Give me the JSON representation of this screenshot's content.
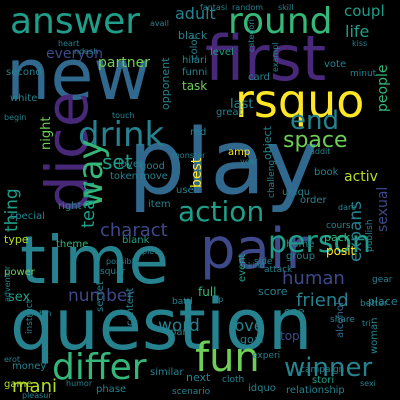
{
  "palette": [
    "#440154",
    "#482878",
    "#3e4989",
    "#31688e",
    "#26828e",
    "#1f9e89",
    "#35b779",
    "#6ece58",
    "#b5de2b",
    "#fde725"
  ],
  "words": [
    {
      "text": "play",
      "color": "#31688e"
    },
    {
      "text": "question",
      "color": "#26828e"
    },
    {
      "text": "new",
      "color": "#31688e"
    },
    {
      "text": "first",
      "color": "#482878"
    },
    {
      "text": "time",
      "color": "#26828e"
    },
    {
      "text": "pair",
      "color": "#3e4989"
    },
    {
      "text": "dice",
      "color": "#482878"
    },
    {
      "text": "rsquo",
      "color": "#fde725"
    },
    {
      "text": "answer",
      "color": "#1f9e89"
    },
    {
      "text": "round",
      "color": "#35b779"
    },
    {
      "text": "differ",
      "color": "#35b779"
    },
    {
      "text": "fun",
      "color": "#6ece58"
    },
    {
      "text": "drink",
      "color": "#26828e"
    },
    {
      "text": "action",
      "color": "#1f9e89"
    },
    {
      "text": "person",
      "color": "#1f9e89"
    },
    {
      "text": "way",
      "color": "#35b779"
    },
    {
      "text": "winner",
      "color": "#26828e"
    },
    {
      "text": "end",
      "color": "#26828e"
    },
    {
      "text": "space",
      "color": "#6ece58"
    },
    {
      "text": "charact",
      "color": "#3e4989"
    },
    {
      "text": "number",
      "color": "#3e4989"
    },
    {
      "text": "friend",
      "color": "#26828e"
    },
    {
      "text": "human",
      "color": "#3e4989"
    },
    {
      "text": "expans",
      "color": "#26828e"
    },
    {
      "text": "thing",
      "color": "#1f9e89"
    },
    {
      "text": "team",
      "color": "#1f9e89"
    },
    {
      "text": "set",
      "color": "#1f9e89"
    },
    {
      "text": "word",
      "color": "#26828e"
    },
    {
      "text": "love",
      "color": "#26828e"
    },
    {
      "text": "mani",
      "color": "#b5de2b"
    },
    {
      "text": "adult",
      "color": "#26828e"
    },
    {
      "text": "life",
      "color": "#1f9e89"
    },
    {
      "text": "partner",
      "color": "#6ece58"
    },
    {
      "text": "activ",
      "color": "#b5de2b"
    },
    {
      "text": "coupl",
      "color": "#1f9e89"
    },
    {
      "text": "everyon",
      "color": "#3e4989"
    },
    {
      "text": "sexual",
      "color": "#3e4989"
    },
    {
      "text": "people",
      "color": "#35b779"
    },
    {
      "text": "best",
      "color": "#fde725"
    },
    {
      "text": "last",
      "color": "#26828e"
    },
    {
      "text": "sex",
      "color": "#1f9e89"
    },
    {
      "text": "night",
      "color": "#6ece58"
    },
    {
      "text": "posit",
      "color": "#fde725"
    },
    {
      "text": "score",
      "color": "#26828e"
    },
    {
      "text": "task",
      "color": "#6ece58"
    },
    {
      "text": "card",
      "color": "#26828e"
    },
    {
      "text": "black",
      "color": "#26828e"
    },
    {
      "text": "level",
      "color": "#1f9e89"
    },
    {
      "text": "opponent",
      "color": "#26828e"
    },
    {
      "text": "object",
      "color": "#26828e"
    },
    {
      "text": "blank",
      "color": "#1f9e89"
    },
    {
      "text": "item",
      "color": "#26828e"
    },
    {
      "text": "order",
      "color": "#26828e"
    },
    {
      "text": "goal",
      "color": "#26828e"
    },
    {
      "text": "place",
      "color": "#26828e"
    },
    {
      "text": "home",
      "color": "#26828e"
    },
    {
      "text": "pack",
      "color": "#35b779"
    },
    {
      "text": "group",
      "color": "#26828e"
    },
    {
      "text": "woman",
      "color": "#26828e"
    },
    {
      "text": "alcohol",
      "color": "#31688e"
    },
    {
      "text": "top",
      "color": "#3e4989"
    },
    {
      "text": "one",
      "color": "#26828e"
    },
    {
      "text": "next",
      "color": "#26828e"
    },
    {
      "text": "full",
      "color": "#35b779"
    },
    {
      "text": "event",
      "color": "#1f9e89"
    },
    {
      "text": "secret",
      "color": "#26828e"
    },
    {
      "text": "money",
      "color": "#26828e"
    },
    {
      "text": "power",
      "color": "#6ece58"
    },
    {
      "text": "special",
      "color": "#26828e"
    },
    {
      "text": "token",
      "color": "#26828e"
    },
    {
      "text": "right",
      "color": "#26828e"
    },
    {
      "text": "type",
      "color": "#b5de2b"
    },
    {
      "text": "theme",
      "color": "#35b779"
    },
    {
      "text": "second",
      "color": "#26828e"
    },
    {
      "text": "white",
      "color": "#26828e"
    },
    {
      "text": "game",
      "color": "#b5de2b"
    },
    {
      "text": "vote",
      "color": "#26828e"
    },
    {
      "text": "color",
      "color": "#26828e"
    },
    {
      "text": "hilari",
      "color": "#26828e"
    },
    {
      "text": "funni",
      "color": "#26828e"
    },
    {
      "text": "relationship",
      "color": "#26828e"
    },
    {
      "text": "stori",
      "color": "#1f9e89"
    },
    {
      "text": "campaign",
      "color": "#26828e"
    },
    {
      "text": "experi",
      "color": "#26828e"
    },
    {
      "text": "part",
      "color": "#26828e"
    },
    {
      "text": "content",
      "color": "#26828e"
    },
    {
      "text": "similar",
      "color": "#26828e"
    },
    {
      "text": "phase",
      "color": "#26828e"
    },
    {
      "text": "scenario",
      "color": "#26828e"
    },
    {
      "text": "publish",
      "color": "#26828e"
    },
    {
      "text": "better",
      "color": "#26828e"
    },
    {
      "text": "share",
      "color": "#26828e"
    },
    {
      "text": "minut",
      "color": "#26828e"
    },
    {
      "text": "uniqu",
      "color": "#26828e"
    },
    {
      "text": "challeng",
      "color": "#26828e"
    },
    {
      "text": "book",
      "color": "#26828e"
    },
    {
      "text": "great",
      "color": "#26828e"
    },
    {
      "text": "red",
      "color": "#26828e"
    },
    {
      "text": "amp",
      "color": "#fde725"
    },
    {
      "text": "use",
      "color": "#26828e"
    },
    {
      "text": "good",
      "color": "#26828e"
    },
    {
      "text": "move",
      "color": "#26828e"
    },
    {
      "text": "idquo",
      "color": "#26828e"
    },
    {
      "text": "squar",
      "color": "#26828e"
    },
    {
      "text": "instruct",
      "color": "#26828e"
    },
    {
      "text": "gear",
      "color": "#26828e"
    },
    {
      "text": "cours",
      "color": "#26828e"
    },
    {
      "text": "side",
      "color": "#26828e"
    },
    {
      "text": "attack",
      "color": "#26828e"
    },
    {
      "text": "battl",
      "color": "#26828e"
    },
    {
      "text": "cloth",
      "color": "#26828e"
    },
    {
      "text": "lover",
      "color": "#26828e"
    },
    {
      "text": "fantasi",
      "color": "#26828e"
    },
    {
      "text": "random",
      "color": "#26828e"
    },
    {
      "text": "skill",
      "color": "#26828e"
    },
    {
      "text": "categori",
      "color": "#26828e"
    },
    {
      "text": "exampl",
      "color": "#26828e"
    },
    {
      "text": "adventur",
      "color": "#26828e"
    },
    {
      "text": "begin",
      "color": "#26828e"
    },
    {
      "text": "monster",
      "color": "#26828e"
    },
    {
      "text": "erot",
      "color": "#26828e"
    },
    {
      "text": "humor",
      "color": "#26828e"
    },
    {
      "text": "heart",
      "color": "#26828e"
    },
    {
      "text": "ndash",
      "color": "#26828e"
    },
    {
      "text": "avail",
      "color": "#26828e"
    },
    {
      "text": "possibl",
      "color": "#26828e"
    },
    {
      "text": "combin",
      "color": "#26828e"
    },
    {
      "text": "piec",
      "color": "#26828e"
    },
    {
      "text": "pleasur",
      "color": "#26828e"
    },
    {
      "text": "year",
      "color": "#26828e"
    },
    {
      "text": "addit",
      "color": "#26828e"
    },
    {
      "text": "kind",
      "color": "#26828e"
    },
    {
      "text": "sip",
      "color": "#26828e"
    },
    {
      "text": "dare",
      "color": "#26828e"
    },
    {
      "text": "tri",
      "color": "#26828e"
    },
    {
      "text": "kiss",
      "color": "#26828e"
    },
    {
      "text": "touch",
      "color": "#26828e"
    },
    {
      "text": "sexi",
      "color": "#26828e"
    }
  ]
}
